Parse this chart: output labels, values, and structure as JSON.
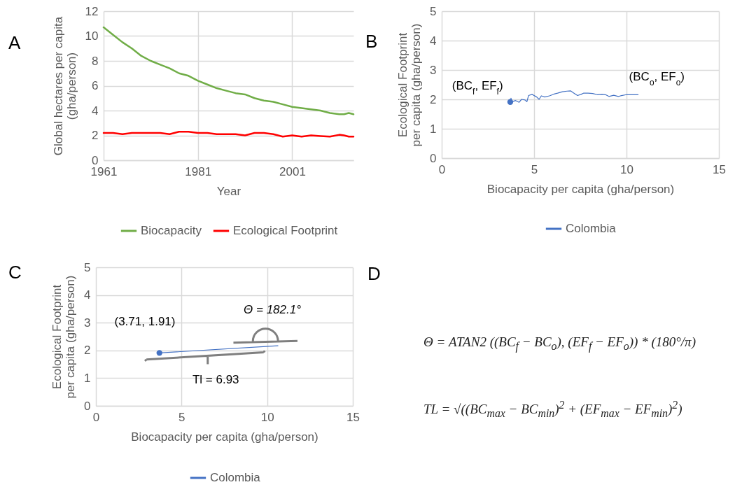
{
  "chart_data": [
    {
      "type": "line",
      "title": "A",
      "xlabel": "Year",
      "ylabel": "Global hectares per capita\n(gha/person)",
      "x": [
        1961,
        1963,
        1965,
        1967,
        1969,
        1971,
        1973,
        1975,
        1977,
        1979,
        1981,
        1983,
        1985,
        1987,
        1989,
        1991,
        1993,
        1995,
        1997,
        1999,
        2001,
        2003,
        2005,
        2007,
        2009,
        2011,
        2012,
        2013,
        2014
      ],
      "xlim": [
        1961,
        2014
      ],
      "xticks": [
        1961,
        1981,
        2001
      ],
      "ylim": [
        0,
        12
      ],
      "yticks": [
        0,
        2,
        4,
        6,
        8,
        10,
        12
      ],
      "grid": true,
      "legend": "bottom",
      "series": [
        {
          "name": "Biocapacity",
          "color": "#70ad47",
          "values": [
            10.7,
            10.1,
            9.5,
            9.0,
            8.4,
            8.0,
            7.7,
            7.4,
            7.0,
            6.8,
            6.4,
            6.1,
            5.8,
            5.6,
            5.4,
            5.3,
            5.0,
            4.8,
            4.7,
            4.5,
            4.3,
            4.2,
            4.1,
            4.0,
            3.8,
            3.7,
            3.7,
            3.8,
            3.7
          ]
        },
        {
          "name": "Ecological Footprint",
          "color": "#ff0000",
          "values": [
            2.2,
            2.2,
            2.1,
            2.2,
            2.2,
            2.2,
            2.2,
            2.1,
            2.3,
            2.3,
            2.2,
            2.2,
            2.1,
            2.1,
            2.1,
            2.0,
            2.2,
            2.2,
            2.1,
            1.9,
            2.0,
            1.9,
            2.0,
            1.95,
            1.9,
            2.05,
            2.0,
            1.9,
            1.9
          ]
        }
      ]
    },
    {
      "type": "line",
      "title": "B",
      "xlabel": "Biocapacity per capita (gha/person)",
      "ylabel": "Ecological Footprint\nper capita (gha/person)",
      "xlim": [
        0,
        15
      ],
      "xticks": [
        0,
        5,
        10,
        15
      ],
      "ylim": [
        0,
        5
      ],
      "yticks": [
        0,
        1,
        2,
        3,
        4,
        5
      ],
      "grid": true,
      "legend": "bottom",
      "series": [
        {
          "name": "Colombia",
          "color": "#4472c4",
          "x": [
            10.63,
            10.0,
            9.68,
            9.56,
            9.31,
            9.05,
            8.86,
            8.67,
            8.42,
            8.17,
            7.92,
            7.67,
            7.54,
            7.35,
            7.16,
            6.97,
            6.78,
            6.53,
            6.27,
            6.08,
            5.83,
            5.58,
            5.39,
            5.27,
            5.14,
            4.89,
            4.7,
            4.61,
            4.51,
            4.32,
            4.19,
            4.0,
            3.81,
            3.75,
            3.71
          ],
          "values": [
            2.16,
            2.16,
            2.12,
            2.1,
            2.14,
            2.1,
            2.16,
            2.17,
            2.16,
            2.2,
            2.21,
            2.21,
            2.17,
            2.13,
            2.21,
            2.29,
            2.28,
            2.26,
            2.21,
            2.18,
            2.12,
            2.08,
            2.12,
            2.0,
            2.08,
            2.17,
            2.13,
            1.92,
            1.98,
            2.0,
            1.9,
            1.96,
            1.92,
            2.04,
            1.91
          ]
        },
        {
          "type": "scatter",
          "color": "#4472c4",
          "marker": "circle",
          "x": [
            3.71
          ],
          "values": [
            1.91
          ]
        }
      ],
      "annotations": [
        "(BC$_{f}$, EF$_{f}$)",
        "(BC$_{o}$, EF$_{o}$)"
      ]
    },
    {
      "type": "line",
      "title": "C",
      "xlabel": "Biocapacity per capita (gha/person)",
      "ylabel": "Ecological Footprint\nper capita (gha/person)",
      "xlim": [
        0,
        15
      ],
      "xticks": [
        0,
        5,
        10,
        15
      ],
      "ylim": [
        0,
        5
      ],
      "yticks": [
        0,
        1,
        2,
        3,
        4,
        5
      ],
      "grid": true,
      "legend": "bottom",
      "series": [
        {
          "name": "Colombia",
          "color": "#4472c4",
          "x": [
            3.71,
            10.63
          ],
          "values": [
            1.91,
            2.17
          ]
        },
        {
          "type": "scatter",
          "color": "#4472c4",
          "marker": "circle",
          "x": [
            3.71
          ],
          "values": [
            1.91
          ]
        }
      ],
      "annotations": [
        "(3.71, 1.91)",
        "Θ = 182.1°",
        "Tl = 6.93"
      ]
    },
    {
      "type": "other",
      "title": "D",
      "annotations": [
        "Θ = ATAN2 ((BC$_{f}$ − BC$_{o}$), (EF$_{f}$ − EF$_{o}$)) * (180°/π)",
        "TL = √((BC$_{max}$ − BC$_{min}$)$^{2}$ + (EF$_{max}$ − EF$_{min}$)$^{2}$)"
      ]
    }
  ]
}
